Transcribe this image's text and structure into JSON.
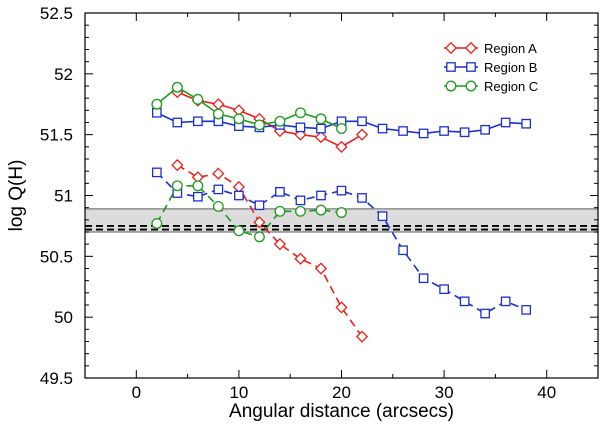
{
  "chart_data": {
    "type": "line",
    "title": "",
    "xlabel": "Angular distance (arcsecs)",
    "ylabel": "log Q(H)",
    "xlim": [
      -5,
      45
    ],
    "ylim": [
      49.5,
      52.5
    ],
    "xticks": [
      0,
      10,
      20,
      30,
      40
    ],
    "yticks": [
      49.5,
      50,
      50.5,
      51,
      51.5,
      52,
      52.5
    ],
    "ytick_labels": [
      "49.5",
      "50",
      "50.5",
      "51",
      "51.5",
      "52",
      "52.5"
    ],
    "xtick_labels": [
      "0",
      "10",
      "20",
      "30",
      "40"
    ],
    "legend_position": "top-right",
    "band": {
      "y_min": 50.7,
      "y_max": 50.89,
      "fill": "#dcdcdc",
      "edge": "#7a7a7a"
    },
    "reference_lines": [
      50.72,
      50.75
    ],
    "series": [
      {
        "name": "Region A",
        "color": "#e8201a",
        "marker": "diamond",
        "style": "solid",
        "x": [
          4,
          6,
          8,
          10,
          12,
          14,
          16,
          18,
          20,
          22
        ],
        "y": [
          51.85,
          51.78,
          51.75,
          51.7,
          51.63,
          51.53,
          51.5,
          51.48,
          51.4,
          51.5
        ]
      },
      {
        "name": "Region B",
        "color": "#1a2fd0",
        "marker": "square",
        "style": "solid",
        "x": [
          2,
          4,
          6,
          8,
          10,
          12,
          14,
          16,
          18,
          20,
          22,
          24,
          26,
          28,
          30,
          32,
          34,
          36,
          38
        ],
        "y": [
          51.68,
          51.6,
          51.61,
          51.61,
          51.57,
          51.56,
          51.58,
          51.56,
          51.55,
          51.61,
          51.61,
          51.55,
          51.53,
          51.51,
          51.53,
          51.52,
          51.54,
          51.6,
          51.59
        ]
      },
      {
        "name": "Region C",
        "color": "#1f9a1f",
        "marker": "circle",
        "style": "solid",
        "x": [
          2,
          4,
          6,
          8,
          10,
          12,
          14,
          16,
          18,
          20
        ],
        "y": [
          51.75,
          51.89,
          51.79,
          51.67,
          51.63,
          51.58,
          51.61,
          51.68,
          51.63,
          51.55
        ]
      },
      {
        "name": "",
        "color": "#e8201a",
        "marker": "diamond",
        "style": "dashed",
        "x": [
          4,
          6,
          8,
          10,
          12,
          14,
          16,
          18,
          20,
          22
        ],
        "y": [
          51.25,
          51.15,
          51.18,
          51.07,
          50.78,
          50.6,
          50.48,
          50.4,
          50.08,
          49.84
        ]
      },
      {
        "name": "",
        "color": "#1a2fd0",
        "marker": "square",
        "style": "dashed",
        "x": [
          2,
          4,
          6,
          8,
          10,
          12,
          14,
          16,
          18,
          20,
          22,
          24,
          26,
          28,
          30,
          32,
          34,
          36,
          38
        ],
        "y": [
          51.19,
          51.02,
          50.99,
          51.05,
          51.0,
          50.92,
          51.03,
          50.96,
          51.0,
          51.04,
          50.98,
          50.83,
          50.55,
          50.32,
          50.23,
          50.13,
          50.03,
          50.13,
          50.06
        ]
      },
      {
        "name": "",
        "color": "#1f9a1f",
        "marker": "circle",
        "style": "dashed",
        "x": [
          2,
          4,
          6,
          8,
          10,
          12,
          14,
          16,
          18,
          20
        ],
        "y": [
          50.77,
          51.08,
          51.08,
          50.91,
          50.71,
          50.66,
          50.87,
          50.87,
          50.88,
          50.86
        ]
      }
    ]
  }
}
